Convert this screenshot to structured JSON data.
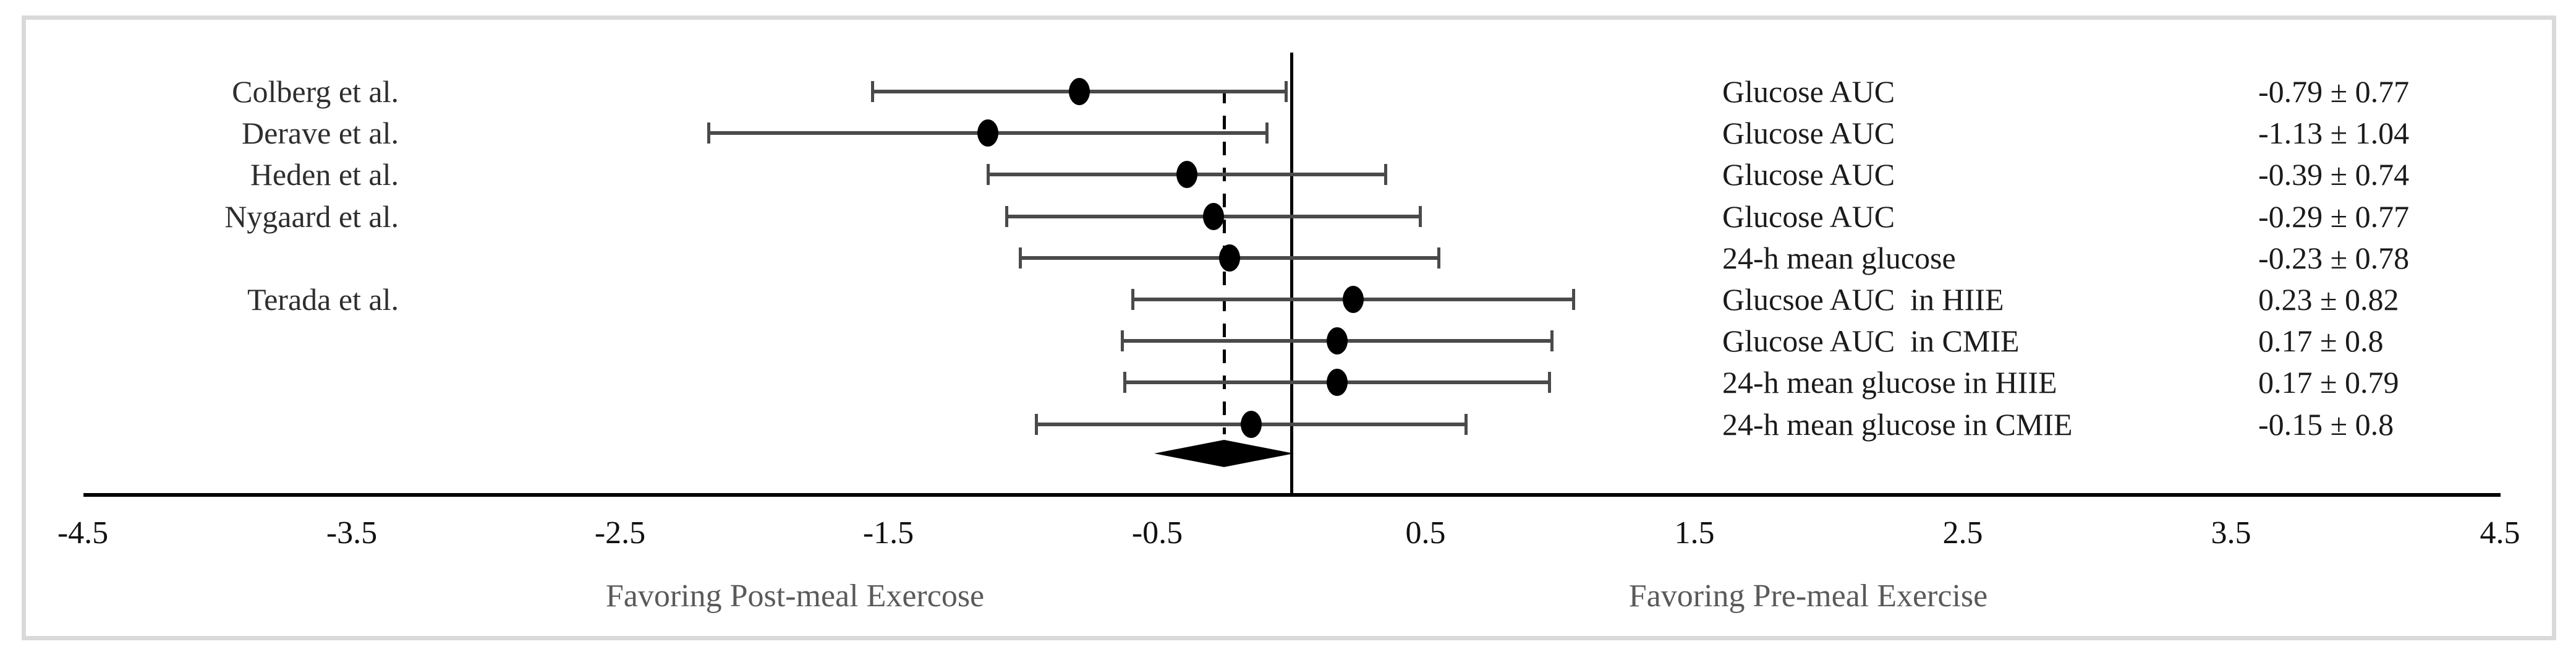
{
  "figure_description": "Forest plot of mean difference in glycemic outcomes, post-meal vs pre-meal exercise",
  "colors": {
    "background": "#ffffff",
    "frame_border": "#d9d9d9",
    "error_bar": "#4a4a4a",
    "marker": "#000000",
    "diamond": "#000000",
    "axis_line": "#000000",
    "reference_line": "#000000",
    "dashed_line": "#000000",
    "row_text": "#1b1b1b",
    "study_text": "#2e2e2e",
    "tick_text": "#111111",
    "caption_text": "#5a5a5a"
  },
  "chart_data": {
    "type": "forest",
    "title": "",
    "x_axis": {
      "range": [
        -4.5,
        4.5
      ],
      "ticks": [
        {
          "value": -4.5,
          "label": "-4.5"
        },
        {
          "value": -3.5,
          "label": "-3.5"
        },
        {
          "value": -2.5,
          "label": "-2.5"
        },
        {
          "value": -1.5,
          "label": "-1.5"
        },
        {
          "value": -0.5,
          "label": "-0.5"
        },
        {
          "value": 0.5,
          "label": "0.5"
        },
        {
          "value": 1.5,
          "label": "1.5"
        },
        {
          "value": 2.5,
          "label": "2.5"
        },
        {
          "value": 3.5,
          "label": "3.5"
        },
        {
          "value": 4.5,
          "label": "4.5"
        }
      ],
      "left_caption": "Favoring Post-meal Exercose",
      "right_caption": "Favoring Pre-meal Exercise",
      "grid": false
    },
    "reference_line_x": 0,
    "pooled_line_x": -0.25,
    "rows": [
      {
        "study": "Colberg et al.",
        "outcome": "Glucose AUC",
        "effect": -0.79,
        "error": 0.77,
        "label": "-0.79 ± 0.77"
      },
      {
        "study": "Derave et al.",
        "outcome": "Glucose AUC",
        "effect": -1.13,
        "error": 1.04,
        "label": "-1.13 ± 1.04"
      },
      {
        "study": "Heden et al.",
        "outcome": "Glucose AUC",
        "effect": -0.39,
        "error": 0.74,
        "label": "-0.39 ± 0.74"
      },
      {
        "study": "Nygaard et al.",
        "outcome": "Glucose AUC",
        "effect": -0.29,
        "error": 0.77,
        "label": "-0.29 ± 0.77"
      },
      {
        "study": "",
        "outcome": "24-h mean glucose",
        "effect": -0.23,
        "error": 0.78,
        "label": "-0.23 ± 0.78"
      },
      {
        "study": "Terada et al.",
        "outcome": "Glucsoe AUC  in HIIE",
        "effect": 0.23,
        "error": 0.82,
        "label": "0.23 ± 0.82"
      },
      {
        "study": "",
        "outcome": "Glucose AUC  in CMIE",
        "effect": 0.17,
        "error": 0.8,
        "label": "0.17 ± 0.8"
      },
      {
        "study": "",
        "outcome": "24-h mean glucose in HIIE",
        "effect": 0.17,
        "error": 0.79,
        "label": "0.17 ± 0.79"
      },
      {
        "study": "",
        "outcome": "24-h mean glucose in CMIE",
        "effect": -0.15,
        "error": 0.8,
        "label": "-0.15 ± 0.8"
      }
    ],
    "diamond": {
      "center": -0.25,
      "low": -0.51,
      "high": 0.01
    }
  }
}
